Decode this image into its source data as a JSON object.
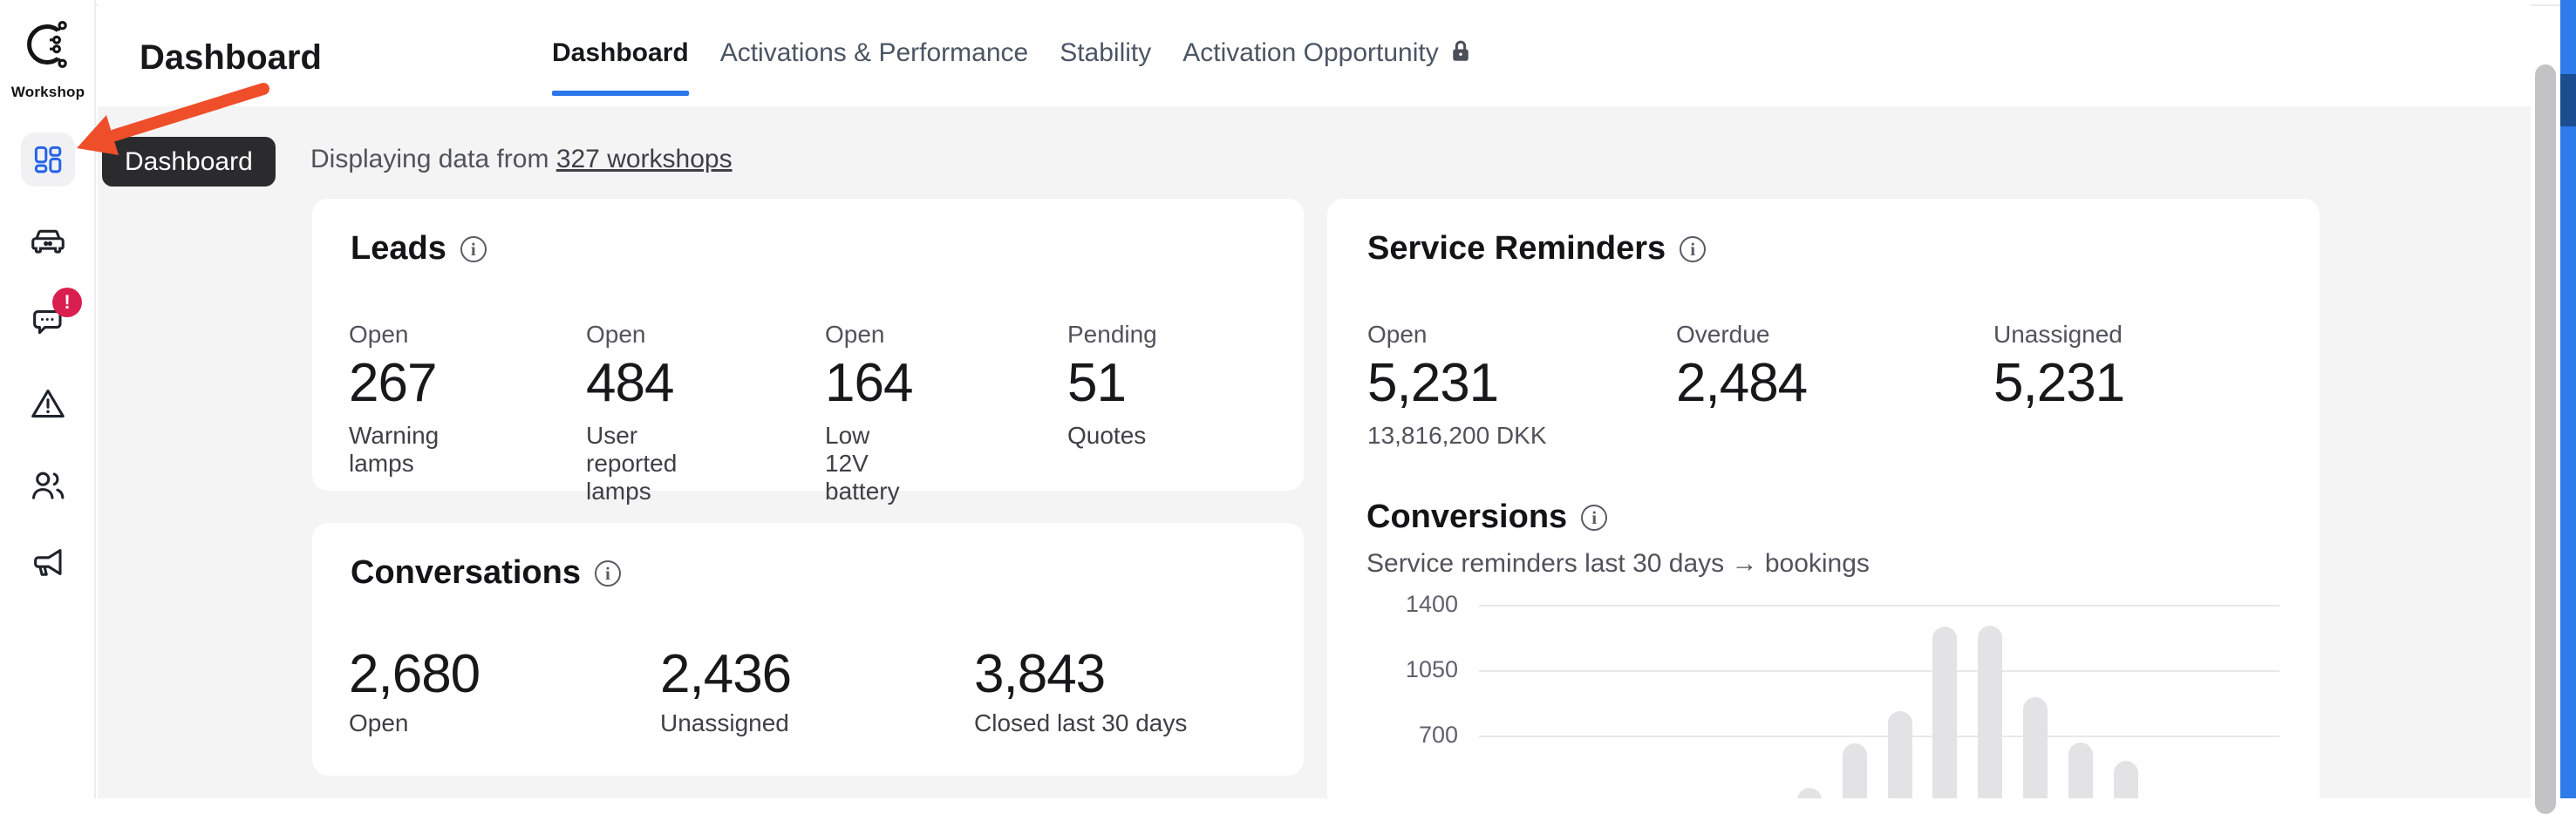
{
  "sidebar": {
    "brand": "Workshop",
    "items": [
      {
        "name": "dashboard",
        "icon": "dashboard-grid-icon",
        "active": true,
        "tooltip": "Dashboard"
      },
      {
        "name": "vehicles",
        "icon": "car-icon"
      },
      {
        "name": "conversations",
        "icon": "chat-bubble-icon",
        "badge": "!"
      },
      {
        "name": "alerts",
        "icon": "warning-triangle-icon"
      },
      {
        "name": "customers",
        "icon": "users-icon"
      },
      {
        "name": "campaigns",
        "icon": "megaphone-icon"
      }
    ]
  },
  "tooltip": {
    "text": "Dashboard"
  },
  "header": {
    "title": "Dashboard",
    "tabs": [
      {
        "label": "Dashboard",
        "active": true
      },
      {
        "label": "Activations & Performance"
      },
      {
        "label": "Stability"
      },
      {
        "label": "Activation Opportunity",
        "locked": true
      }
    ]
  },
  "banner": {
    "prefix": "Displaying data from",
    "link": "327 workshops"
  },
  "leads": {
    "title": "Leads",
    "stats": [
      {
        "label": "Open",
        "value": "267",
        "sublabel": "Warning lamps"
      },
      {
        "label": "Open",
        "value": "484",
        "sublabel": "User reported lamps"
      },
      {
        "label": "Open",
        "value": "164",
        "sublabel": "Low 12V battery"
      },
      {
        "label": "Pending",
        "value": "51",
        "sublabel": "Quotes"
      }
    ]
  },
  "conversations": {
    "title": "Conversations",
    "stats": [
      {
        "value": "2,680",
        "sublabel": "Open"
      },
      {
        "value": "2,436",
        "sublabel": "Unassigned"
      },
      {
        "value": "3,843",
        "sublabel": "Closed last 30 days"
      }
    ]
  },
  "service_reminders": {
    "title": "Service Reminders",
    "stats": [
      {
        "label": "Open",
        "value": "5,231",
        "note": "13,816,200 DKK"
      },
      {
        "label": "Overdue",
        "value": "2,484"
      },
      {
        "label": "Unassigned",
        "value": "5,231"
      }
    ]
  },
  "conversions": {
    "title": "Conversions",
    "subtitle": "Service reminders last 30 days → bookings"
  },
  "chart_data": {
    "type": "bar",
    "title": "Conversions",
    "subtitle": "Service reminders last 30 days → bookings",
    "ylabel": "",
    "y_ticks": [
      1400,
      1050,
      700
    ],
    "values": [
      420,
      660,
      830,
      1285,
      1290,
      905,
      665,
      565
    ],
    "y_axis_top": 1490,
    "y_visible_bottom": 364,
    "grid": true,
    "legend": false,
    "bar_color": "#e3e3e6",
    "clipped_at_viewport_bottom": true
  },
  "colors": {
    "accent_blue": "#2b77e8",
    "icon_blue": "#2563eb",
    "badge_red": "#d91f50",
    "arrow_red": "#ef4e2b",
    "tooltip_bg": "#2b2b2d",
    "content_bg": "#f4f4f5",
    "card_bg": "#ffffff",
    "bar_gray": "#e3e3e6",
    "scroll_strip_blue": "#2e7bea",
    "scroll_strip_dark": "#1c4d8f"
  }
}
